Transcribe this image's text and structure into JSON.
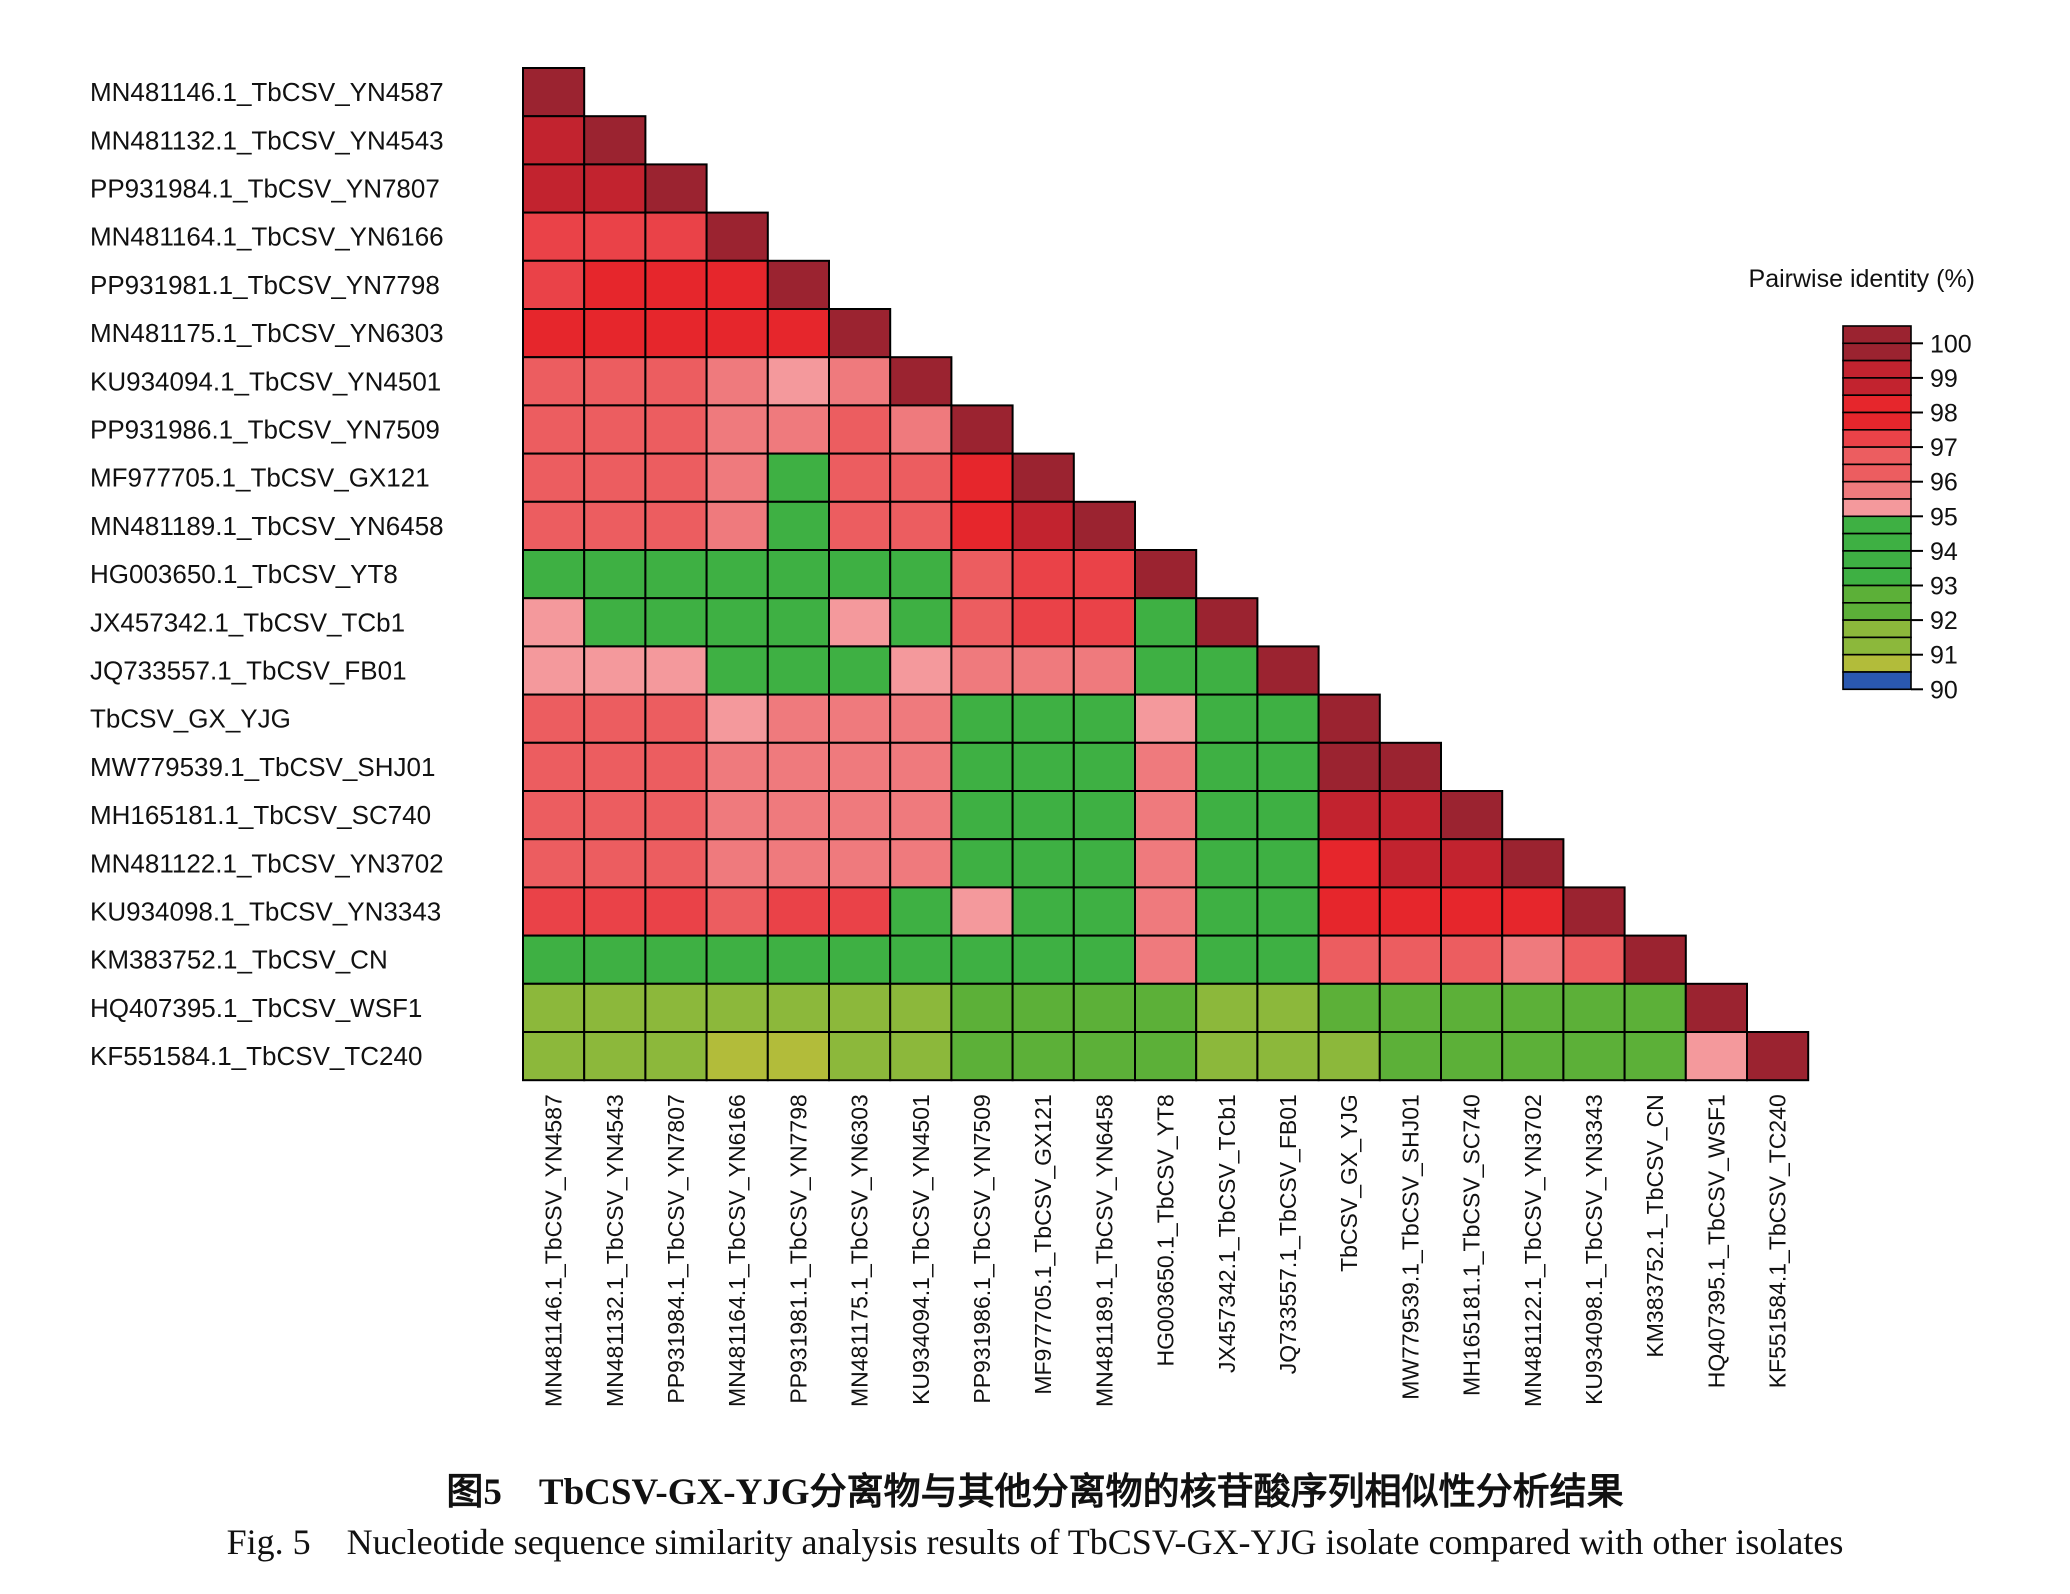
{
  "chart_data": {
    "type": "heatmap",
    "title": "",
    "legend_title": "Pairwise identity (%)",
    "legend_ticks": [
      100,
      99,
      98,
      97,
      96,
      95,
      94,
      93,
      92,
      91,
      90
    ],
    "legend_placement": "right",
    "labels": [
      "MN481146.1_TbCSV_YN4587",
      "MN481132.1_TbCSV_YN4543",
      "PP931984.1_TbCSV_YN7807",
      "MN481164.1_TbCSV_YN6166",
      "PP931981.1_TbCSV_YN7798",
      "MN481175.1_TbCSV_YN6303",
      "KU934094.1_TbCSV_YN4501",
      "PP931986.1_TbCSV_YN7509",
      "MF977705.1_TbCSV_GX121",
      "MN481189.1_TbCSV_YN6458",
      "HG003650.1_TbCSV_YT8",
      "JX457342.1_TbCSV_TCb1",
      "JQ733557.1_TbCSV_FB01",
      "TbCSV_GX_YJG",
      "MW779539.1_TbCSV_SHJ01",
      "MH165181.1_TbCSV_SC740",
      "MN481122.1_TbCSV_YN3702",
      "KU934098.1_TbCSV_YN3343",
      "KM383752.1_TbCSV_CN",
      "HQ407395.1_TbCSV_WSF1",
      "KF551584.1_TbCSV_TC240"
    ],
    "matrix_lower": [
      [
        100
      ],
      [
        98.6,
        100
      ],
      [
        98.8,
        98.8,
        100
      ],
      [
        97.0,
        97.3,
        97.4,
        100
      ],
      [
        97.2,
        97.7,
        97.5,
        98.3,
        100
      ],
      [
        97.7,
        97.8,
        97.6,
        97.9,
        97.6,
        100
      ],
      [
        96.6,
        96.4,
        96.4,
        95.7,
        95.4,
        96.0,
        100
      ],
      [
        96.6,
        96.3,
        96.3,
        96.0,
        95.6,
        96.6,
        95.6,
        100
      ],
      [
        96.3,
        96.1,
        96.1,
        95.7,
        93.9,
        96.3,
        96.1,
        97.7,
        100
      ],
      [
        96.4,
        96.2,
        96.2,
        95.9,
        93.9,
        96.4,
        96.2,
        97.7,
        98.6,
        100
      ],
      [
        93.6,
        93.6,
        93.6,
        93.6,
        93.6,
        93.6,
        93.6,
        96.3,
        97.0,
        97.0,
        100
      ],
      [
        95.4,
        93.6,
        93.6,
        93.6,
        93.6,
        95.4,
        93.6,
        96.2,
        96.8,
        96.8,
        93.6,
        100
      ],
      [
        95.3,
        95.3,
        95.3,
        93.6,
        93.6,
        93.6,
        95.4,
        95.8,
        95.8,
        95.8,
        93.6,
        93.6,
        100
      ],
      [
        96.3,
        96.2,
        96.2,
        95.5,
        95.8,
        95.8,
        95.7,
        93.6,
        93.6,
        93.6,
        95.4,
        93.6,
        93.6,
        100
      ],
      [
        96.5,
        96.3,
        96.3,
        95.8,
        95.9,
        95.9,
        95.9,
        93.6,
        93.6,
        93.6,
        95.6,
        93.6,
        93.6,
        99.5,
        100
      ],
      [
        96.6,
        96.4,
        96.4,
        95.9,
        96.0,
        96.0,
        96.0,
        93.6,
        93.6,
        93.6,
        95.7,
        93.6,
        93.6,
        99.3,
        99.4,
        100
      ],
      [
        96.4,
        96.3,
        96.3,
        95.8,
        95.9,
        95.9,
        95.8,
        93.6,
        93.6,
        93.6,
        95.8,
        93.6,
        93.6,
        98.4,
        98.5,
        98.6,
        100
      ],
      [
        97.2,
        97.1,
        97.1,
        96.5,
        96.9,
        96.9,
        93.6,
        95.4,
        93.6,
        93.6,
        96.0,
        93.6,
        93.6,
        97.9,
        98.1,
        98.1,
        98.1,
        100
      ],
      [
        93.6,
        93.6,
        93.6,
        93.6,
        93.6,
        93.6,
        93.6,
        93.6,
        93.6,
        93.6,
        96.0,
        93.6,
        93.6,
        96.2,
        96.3,
        96.3,
        96.0,
        96.4,
        100
      ],
      [
        91.6,
        91.6,
        91.6,
        91.4,
        91.5,
        91.6,
        91.2,
        92.4,
        92.4,
        92.4,
        92.6,
        91.8,
        91.8,
        92.4,
        92.6,
        92.6,
        92.6,
        92.8,
        92.8,
        100
      ],
      [
        91.3,
        91.2,
        91.2,
        90.9,
        90.8,
        91.2,
        91.2,
        92.2,
        92.2,
        92.2,
        92.6,
        91.6,
        91.2,
        91.4,
        92.4,
        92.4,
        92.4,
        92.6,
        92.6,
        95.5,
        100
      ]
    ]
  },
  "caption": {
    "cn": "图5　TbCSV-GX-YJG分离物与其他分离物的核苷酸序列相似性分析结果",
    "en": "Fig. 5　Nucleotide sequence similarity analysis results of TbCSV-GX-YJG isolate compared with other isolates"
  }
}
